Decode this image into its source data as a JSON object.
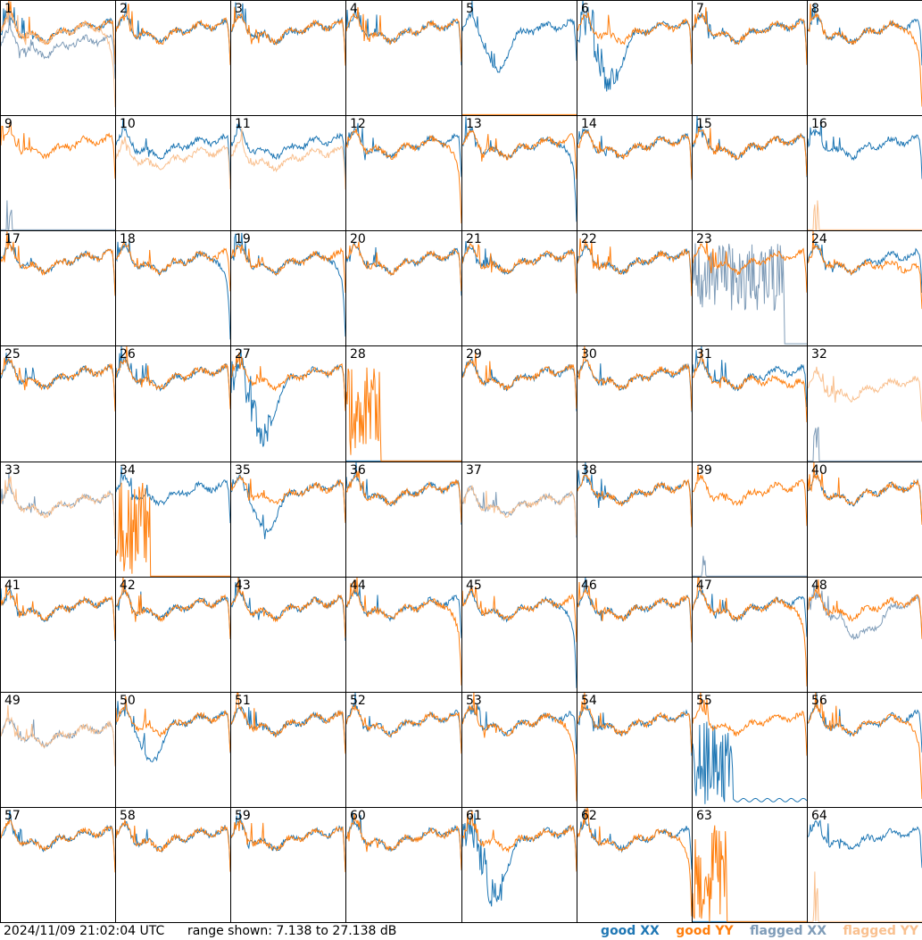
{
  "chart_data": {
    "type": "line",
    "panels": [
      "1",
      "2",
      "3",
      "4",
      "5",
      "6",
      "7",
      "8",
      "9",
      "10",
      "11",
      "12",
      "13",
      "14",
      "15",
      "16",
      "17",
      "18",
      "19",
      "20",
      "21",
      "22",
      "23",
      "24",
      "25",
      "26",
      "27",
      "28",
      "29",
      "30",
      "31",
      "32",
      "33",
      "34",
      "35",
      "36",
      "37",
      "38",
      "39",
      "40",
      "41",
      "42",
      "43",
      "44",
      "45",
      "46",
      "47",
      "48",
      "49",
      "50",
      "51",
      "52",
      "53",
      "54",
      "55",
      "56",
      "57",
      "58",
      "59",
      "60",
      "61",
      "62",
      "63",
      "64"
    ],
    "ylim": [
      7.138,
      27.138
    ],
    "yunit": "dB",
    "series": [
      {
        "name": "good XX",
        "color": "#1f77b4"
      },
      {
        "name": "good YY",
        "color": "#ff7f0e"
      },
      {
        "name": "flagged XX",
        "color": "#7f9cb8"
      },
      {
        "name": "flagged YY",
        "color": "#f9c08f"
      }
    ],
    "panel_styles": {
      "1": [
        "good",
        "good",
        "shiftdown",
        "dropend"
      ],
      "5": [
        "dip",
        "flatlow"
      ],
      "6": [
        "bigdip",
        "good"
      ],
      "8": [
        "good",
        "dropend"
      ],
      "9": [
        "flagspike",
        "good"
      ],
      "10": [
        "good",
        "flaggood"
      ],
      "11": [
        "good",
        "flaggood"
      ],
      "12": [
        "good",
        "dropend"
      ],
      "13": [
        "dropend",
        "good"
      ],
      "16": [
        "good",
        "flagspike"
      ],
      "18": [
        "dropend",
        "good"
      ],
      "19": [
        "dropend",
        "good"
      ],
      "23": [
        "flagnoise",
        "good"
      ],
      "24": [
        "good",
        "lowerend"
      ],
      "27": [
        "bigdip",
        "good"
      ],
      "28": [
        "flatlow",
        "burst"
      ],
      "31": [
        "good",
        "lowerend"
      ],
      "32": [
        "flagspike",
        "flaggood"
      ],
      "33": [
        "flaggood",
        "flaggood"
      ],
      "34": [
        "good",
        "burst"
      ],
      "35": [
        "dip",
        "good"
      ],
      "37": [
        "flaggood",
        "flaggood"
      ],
      "39": [
        "spikesmall",
        "good"
      ],
      "44": [
        "good",
        "dropend"
      ],
      "45": [
        "dropend",
        "good"
      ],
      "47": [
        "good",
        "dropend"
      ],
      "48": [
        "flagdip",
        "good"
      ],
      "49": [
        "flaggood",
        "flaggood"
      ],
      "50": [
        "dip",
        "good"
      ],
      "53": [
        "good",
        "dropend"
      ],
      "55": [
        "burstlow",
        "good"
      ],
      "56": [
        "good",
        "dropend"
      ],
      "61": [
        "bigdip",
        "good"
      ],
      "62": [
        "good",
        "dropend"
      ],
      "63": [
        "flatlow",
        "burst"
      ],
      "64": [
        "good",
        "flagspike"
      ]
    }
  },
  "footer": {
    "timestamp": "2024/11/09 21:02:04 UTC",
    "range_text": "range shown: 7.138 to 27.138 dB"
  },
  "legend": {
    "good_xx": "good XX",
    "good_yy": "good YY",
    "flagged_xx": "flagged XX",
    "flagged_yy": "flagged YY"
  }
}
